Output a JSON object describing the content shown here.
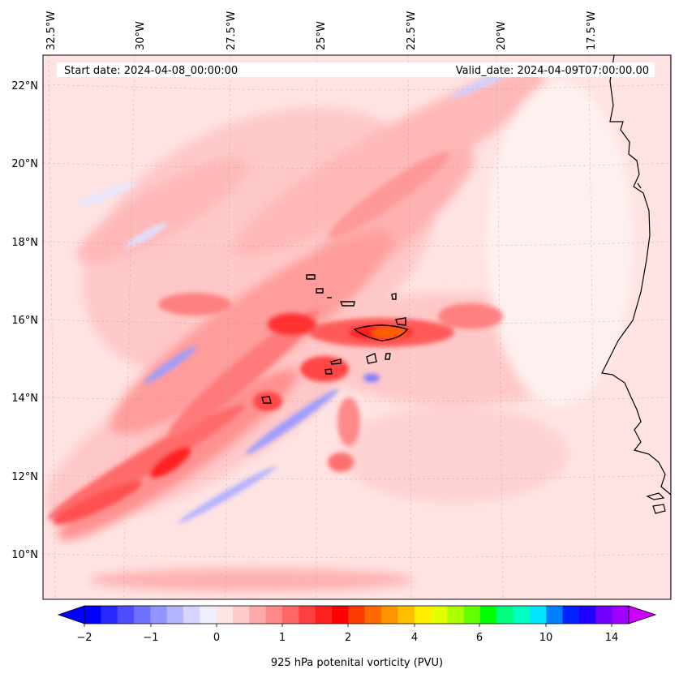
{
  "map": {
    "header": {
      "start_date": "Start date: 2024-04-08_00:00:00",
      "valid_date": "Valid_date: 2024-04-09T07:00:00.00"
    },
    "longitude_labels": [
      "32.5°W",
      "30°W",
      "27.5°W",
      "25°W",
      "22.5°W",
      "20°W",
      "17.5°W"
    ],
    "latitude_labels": [
      "22°N",
      "20°N",
      "18°N",
      "16°N",
      "14°N",
      "12°N",
      "10°N"
    ],
    "extent": {
      "lon_min": -33.0,
      "lon_max": -15.5,
      "lat_min": 9.0,
      "lat_max": 22.8
    },
    "colorbar": {
      "label": "925 hPa potenital vorticity (PVU)",
      "tick_labels": [
        "−2",
        "−1",
        "0",
        "1",
        "2",
        "4",
        "6",
        "10",
        "14"
      ],
      "colors": [
        "#0000ff",
        "#2828ff",
        "#4d4dff",
        "#7070ff",
        "#9494ff",
        "#b4b4ff",
        "#d4d4ff",
        "#eeeeff",
        "#ffe4e4",
        "#ffcaca",
        "#ffaaaa",
        "#ff8888",
        "#ff6666",
        "#ff4040",
        "#ff2020",
        "#ff0000",
        "#ff3a00",
        "#ff6a00",
        "#ff9400",
        "#ffbe00",
        "#ffee00",
        "#e4ff00",
        "#aaff00",
        "#66ff00",
        "#00ff00",
        "#00ff80",
        "#00ffc0",
        "#00e5ff",
        "#0080ff",
        "#0022ff",
        "#2000ff",
        "#7000ff",
        "#a000ff"
      ],
      "under_color": "#0000ff",
      "over_color": "#cc00ff"
    }
  }
}
